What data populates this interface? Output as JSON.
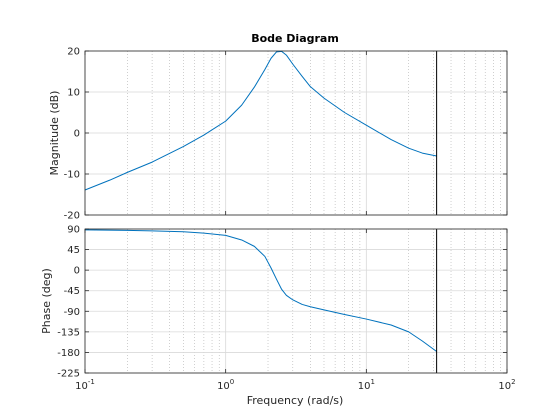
{
  "chart_data": {
    "type": "line",
    "title": "Bode Diagram",
    "xlabel": "Frequency  (rad/s)",
    "x_scale": "log",
    "xlim": [
      0.1,
      100
    ],
    "x_ticks": [
      0.1,
      1,
      10,
      100
    ],
    "x_tick_labels": [
      {
        "base": "10",
        "exp": "-1"
      },
      {
        "base": "10",
        "exp": "0"
      },
      {
        "base": "10",
        "exp": "1"
      },
      {
        "base": "10",
        "exp": "2"
      }
    ],
    "grid": true,
    "marker_frequency": 31.6,
    "colors": {
      "line": "#0072bd",
      "grid_major": "#d9d9d9",
      "grid_minor": "#b0b0b0",
      "axes": "#262626",
      "marker": "#000000"
    },
    "magnitude": {
      "ylabel": "Magnitude (dB)",
      "ylim": [
        -20,
        20
      ],
      "y_ticks": [
        -20,
        -10,
        0,
        10,
        20
      ],
      "y_tick_labels": [
        "-20",
        "-10",
        "0",
        "10",
        "20"
      ],
      "series": [
        {
          "x": [
            0.1,
            0.15,
            0.2,
            0.3,
            0.5,
            0.7,
            1.0,
            1.3,
            1.6,
            1.9,
            2.1,
            2.3,
            2.5,
            2.7,
            3.0,
            3.5,
            4.0,
            5.0,
            7.0,
            10.0,
            15.0,
            20.0,
            25.0,
            31.6
          ],
          "y": [
            -13.9,
            -11.5,
            -9.6,
            -7.1,
            -3.3,
            -0.5,
            2.9,
            6.8,
            11.2,
            15.5,
            18.2,
            19.8,
            19.9,
            19.0,
            16.8,
            13.8,
            11.3,
            8.5,
            5.0,
            1.9,
            -1.6,
            -3.7,
            -4.9,
            -5.6
          ]
        }
      ]
    },
    "phase": {
      "ylabel": "Phase (deg)",
      "ylim": [
        -225,
        90
      ],
      "y_ticks": [
        -225,
        -180,
        -135,
        -90,
        -45,
        0,
        45,
        90
      ],
      "y_tick_labels": [
        "-225",
        "-180",
        "-135",
        "-90",
        "-45",
        "0",
        "45",
        "90"
      ],
      "series": [
        {
          "x": [
            0.1,
            0.2,
            0.3,
            0.5,
            0.7,
            1.0,
            1.3,
            1.6,
            1.9,
            2.1,
            2.3,
            2.5,
            2.7,
            3.0,
            3.5,
            4.0,
            5.0,
            7.0,
            10.0,
            15.0,
            20.0,
            25.0,
            31.6
          ],
          "y": [
            88,
            87,
            86,
            84,
            81,
            76,
            66,
            52,
            30,
            5,
            -20,
            -42,
            -55,
            -65,
            -75,
            -80,
            -87,
            -97,
            -107,
            -120,
            -135,
            -155,
            -178
          ]
        }
      ]
    }
  }
}
